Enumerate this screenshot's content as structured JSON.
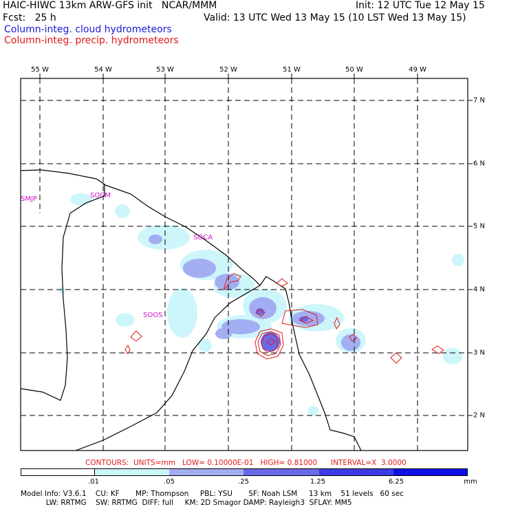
{
  "header": {
    "title_left": "HAIC-HIWC 13km ARW-GFS init   NCAR/MMM",
    "fcst": "Fcst:   25 h",
    "init": "Init: 12 UTC Tue 12 May 15",
    "valid": "Valid: 13 UTC Wed 13 May 15 (10 LST Wed 13 May 15)",
    "legend_cloud": "Column-integ. cloud hydrometeors",
    "legend_precip": "Column-integ. precip. hydrometeors"
  },
  "map": {
    "lon_labels": [
      "55 W",
      "54 W",
      "53 W",
      "52 W",
      "51 W",
      "50 W",
      "49 W"
    ],
    "lat_labels": [
      "7 N",
      "6 N",
      "5 N",
      "4 N",
      "3 N",
      "2 N"
    ],
    "stations": [
      "SMJP",
      "SOCA",
      "SOCM",
      "SOOS"
    ]
  },
  "contours_note": "CONTOURS:  UNITS=mm   LOW= 0.10000E-01   HIGH= 0.81000      INTERVAL=X  3.0000",
  "colorbar": {
    "labels": [
      ".01",
      ".05",
      ".25",
      "1.25",
      "6.25",
      "mm"
    ],
    "colors": [
      "#ffffff",
      "#cdf6fb",
      "#a3aef2",
      "#6a6ae8",
      "#3c3ce4",
      "#1010e8"
    ]
  },
  "footer": {
    "line1": "Model Info: V3.6.1    CU: KF       MP: Thompson     PBL: YSU       SF: Noah LSM     13 km    51 levels   60 sec",
    "line2": "           LW: RRTMG    SW: RRTMG  DIFF: full     KM: 2D Smagor DAMP: Rayleigh3  SFLAY: MM5"
  }
}
